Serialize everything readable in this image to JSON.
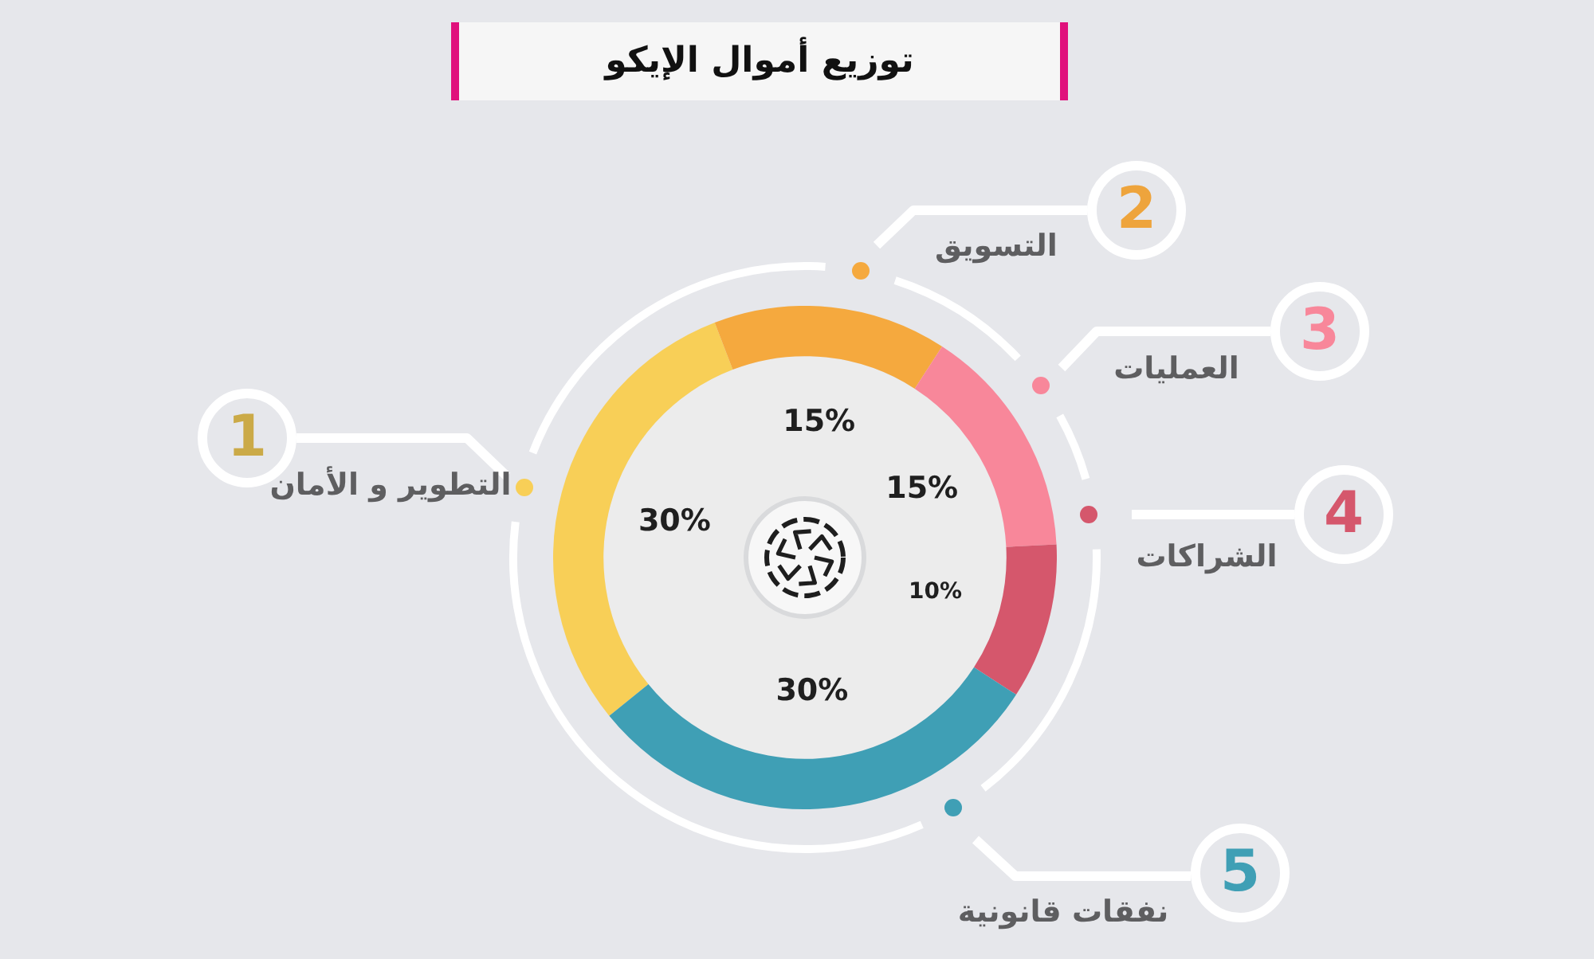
{
  "chart_data": {
    "type": "donut",
    "title": "توزيع أموال الإيكو",
    "categories": [
      "التطوير و الأمان",
      "التسويق",
      "العمليات",
      "الشراكات",
      "نفقات قانونية"
    ],
    "values": [
      30,
      15,
      15,
      10,
      30
    ],
    "colors": [
      "#f8cf57",
      "#f5a93e",
      "#f8879a",
      "#d5576c",
      "#3f9fb5"
    ],
    "value_labels": [
      "30%",
      "15%",
      "15%",
      "10%",
      "30%"
    ],
    "annotations": [
      "1",
      "2",
      "3",
      "4",
      "5"
    ]
  }
}
